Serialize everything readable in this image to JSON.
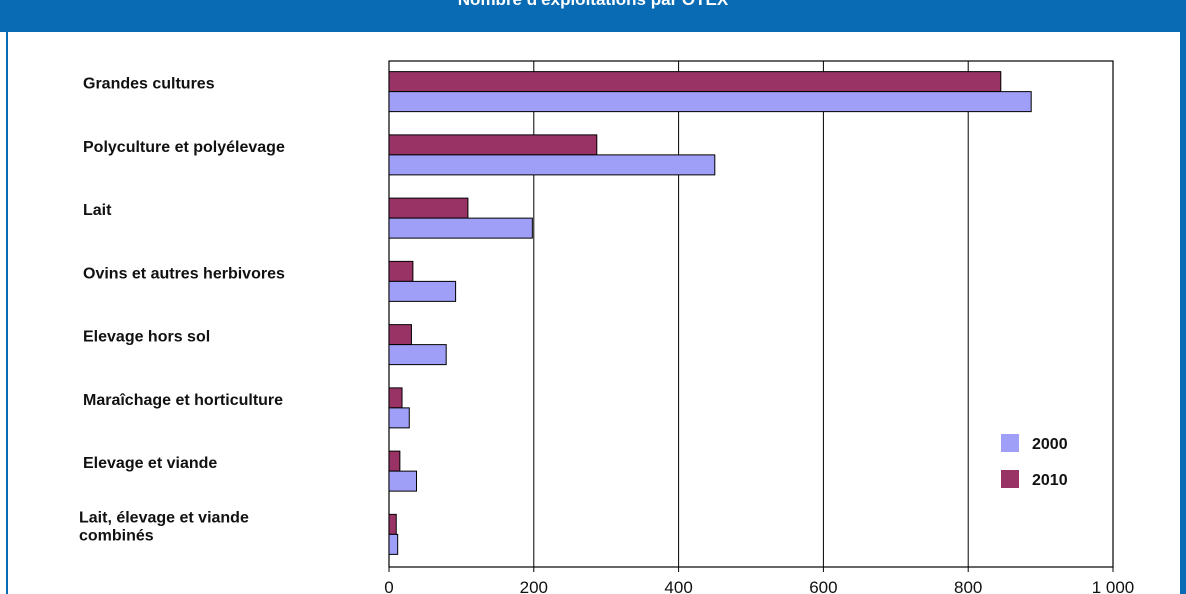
{
  "header": {
    "title": "Nombre d'exploitations par OTEX"
  },
  "colors": {
    "header": "#0a6bb5",
    "series_2000": "#9f9ff7",
    "series_2010": "#993366"
  },
  "chart_data": {
    "type": "bar",
    "orientation": "horizontal",
    "categories": [
      "Grandes cultures",
      "Polyculture et polyélevage",
      "Lait",
      "Ovins et autres herbivores",
      "Elevage hors sol",
      "Maraîchage et horticulture",
      "Elevage et viande",
      "Lait, élevage et viande combinés"
    ],
    "series": [
      {
        "name": "2000",
        "color": "#9f9ff7",
        "values": [
          887,
          450,
          198,
          92,
          79,
          28,
          38,
          12
        ]
      },
      {
        "name": "2010",
        "color": "#993366",
        "values": [
          845,
          287,
          109,
          33,
          31,
          18,
          15,
          10
        ]
      }
    ],
    "xticks": [
      "0",
      "200",
      "400",
      "600",
      "800",
      "1 000"
    ],
    "xlim": [
      0,
      1000
    ],
    "grid": "vertical",
    "legend_position": "bottom-right"
  }
}
